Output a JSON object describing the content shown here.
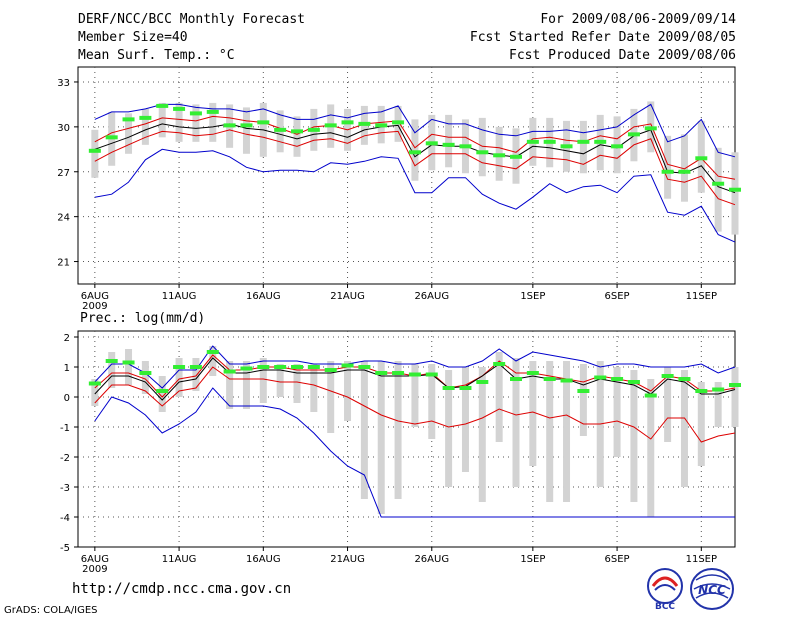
{
  "header": {
    "title": "DERF/NCC/BCC Monthly Forecast",
    "member_size": "Member Size=40",
    "forecast_period": "For 2009/08/06-2009/09/14",
    "start_date": "Fcst Started Refer Date 2009/08/05",
    "produced_date": "Fcst Produced Date 2009/08/06"
  },
  "footer": {
    "url": "http://cmdp.ncc.cma.gov.cn",
    "credit": "GrADS: COLA/IGES",
    "logo_left": "BCC",
    "logo_right": "NCC"
  },
  "colors": {
    "envelope": "#0000cc",
    "quartile": "#dd0000",
    "median": "#000000",
    "mean": "#33ee33",
    "box": "#d3d3d3",
    "grid": "#555555"
  },
  "chart_data": [
    {
      "type": "line",
      "title": "Mean Surf. Temp.: °C",
      "xlabel": "",
      "ylabel": "",
      "ylim": [
        19.5,
        34
      ],
      "yticks": [
        21,
        24,
        27,
        30,
        33
      ],
      "x_day_range": [
        5,
        44
      ],
      "x_ticks": [
        {
          "day": 6,
          "label": "6AUG"
        },
        {
          "day": 11,
          "label": "11AUG"
        },
        {
          "day": 16,
          "label": "16AUG"
        },
        {
          "day": 21,
          "label": "21AUG"
        },
        {
          "day": 26,
          "label": "26AUG"
        },
        {
          "day": 32,
          "label": "1SEP"
        },
        {
          "day": 37,
          "label": "6SEP"
        },
        {
          "day": 42,
          "label": "11SEP"
        }
      ],
      "year_label": "2009",
      "x": [
        6,
        7,
        8,
        9,
        10,
        11,
        12,
        13,
        14,
        15,
        16,
        17,
        18,
        19,
        20,
        21,
        22,
        23,
        24,
        25,
        26,
        27,
        28,
        29,
        30,
        31,
        32,
        33,
        34,
        35,
        36,
        37,
        38,
        39,
        40,
        41,
        42,
        43,
        44
      ],
      "series": [
        {
          "name": "max",
          "values": [
            30.5,
            31.0,
            31.0,
            31.2,
            31.5,
            31.5,
            31.3,
            31.2,
            31.2,
            31.0,
            31.2,
            30.8,
            30.5,
            30.5,
            30.8,
            30.6,
            30.9,
            31.0,
            31.4,
            29.6,
            30.5,
            30.2,
            30.2,
            29.8,
            29.5,
            29.4,
            29.7,
            29.7,
            29.8,
            29.6,
            29.8,
            30.0,
            30.8,
            31.5,
            29.0,
            29.4,
            30.5,
            28.3,
            28.0
          ]
        },
        {
          "name": "upper_quartile",
          "values": [
            29.0,
            29.6,
            29.9,
            30.2,
            30.6,
            30.5,
            30.4,
            30.7,
            30.6,
            30.4,
            30.3,
            29.9,
            29.5,
            30.0,
            30.1,
            29.8,
            30.2,
            30.3,
            30.4,
            28.6,
            29.5,
            29.3,
            29.3,
            28.7,
            28.6,
            28.3,
            29.2,
            29.3,
            29.1,
            29.0,
            29.4,
            29.2,
            30.0,
            30.2,
            27.5,
            27.2,
            27.9,
            26.7,
            26.5
          ]
        },
        {
          "name": "median",
          "values": [
            28.5,
            28.9,
            29.3,
            29.8,
            30.2,
            30.0,
            29.9,
            30.0,
            30.2,
            29.9,
            29.8,
            29.5,
            29.2,
            29.5,
            29.6,
            29.3,
            29.8,
            30.0,
            30.1,
            28.0,
            28.8,
            28.7,
            28.7,
            28.3,
            28.1,
            28.0,
            28.7,
            28.6,
            28.4,
            28.2,
            28.8,
            28.6,
            29.4,
            29.8,
            27.0,
            26.9,
            27.4,
            26.0,
            25.6
          ]
        },
        {
          "name": "lower_quartile",
          "values": [
            27.7,
            28.3,
            28.8,
            29.3,
            29.7,
            29.6,
            29.4,
            29.5,
            29.8,
            29.5,
            29.3,
            29.0,
            28.7,
            29.1,
            29.2,
            28.9,
            29.4,
            29.6,
            29.7,
            27.4,
            28.2,
            28.2,
            28.2,
            27.6,
            27.4,
            27.2,
            28.0,
            27.9,
            27.8,
            27.5,
            28.1,
            27.9,
            28.8,
            29.2,
            26.5,
            26.3,
            26.7,
            25.2,
            24.8
          ]
        },
        {
          "name": "min",
          "values": [
            25.3,
            25.5,
            26.3,
            27.8,
            28.5,
            28.3,
            28.3,
            28.4,
            28.0,
            27.3,
            27.0,
            27.1,
            27.1,
            27.0,
            27.6,
            27.5,
            27.7,
            28.0,
            27.9,
            25.6,
            25.6,
            26.6,
            26.6,
            25.5,
            24.9,
            24.5,
            25.3,
            26.2,
            25.6,
            26.0,
            26.1,
            25.6,
            26.7,
            26.8,
            24.3,
            24.1,
            24.7,
            22.8,
            22.3
          ]
        },
        {
          "name": "ensemble_mean",
          "values": [
            28.4,
            29.3,
            30.5,
            30.6,
            31.4,
            31.2,
            30.9,
            31.0,
            30.1,
            30.1,
            30.3,
            29.8,
            29.7,
            29.8,
            30.1,
            30.3,
            30.2,
            30.1,
            30.3,
            28.3,
            28.9,
            28.8,
            28.7,
            28.3,
            28.1,
            28.0,
            29.0,
            29.0,
            28.7,
            29.0,
            29.0,
            28.7,
            29.5,
            29.9,
            27.0,
            27.0,
            27.9,
            26.2,
            25.8
          ]
        },
        {
          "name": "box_top",
          "values": [
            29.8,
            31.0,
            30.9,
            31.2,
            31.6,
            31.6,
            31.5,
            31.6,
            31.5,
            31.3,
            31.6,
            31.1,
            30.7,
            31.2,
            31.5,
            31.2,
            31.4,
            31.4,
            31.4,
            30.5,
            30.8,
            30.8,
            30.5,
            30.6,
            30.0,
            29.9,
            30.6,
            30.6,
            30.4,
            30.4,
            30.8,
            30.7,
            31.2,
            31.7,
            29.4,
            29.5,
            30.4,
            28.6,
            28.3
          ]
        },
        {
          "name": "box_bottom",
          "values": [
            26.6,
            27.4,
            28.2,
            28.8,
            29.3,
            29.0,
            29.0,
            29.0,
            28.6,
            28.2,
            28.0,
            28.3,
            28.0,
            28.4,
            28.6,
            28.4,
            28.8,
            28.9,
            29.0,
            26.4,
            27.1,
            27.3,
            26.9,
            26.7,
            26.4,
            26.2,
            27.4,
            27.3,
            27.0,
            26.9,
            27.1,
            26.9,
            27.7,
            28.3,
            25.2,
            25.0,
            25.6,
            23.0,
            22.8
          ]
        }
      ]
    },
    {
      "type": "line",
      "title": "Prec.: log(mm/d)",
      "xlabel": "",
      "ylabel": "",
      "ylim": [
        -5,
        2.2
      ],
      "yticks": [
        2,
        1,
        0,
        -1,
        -2,
        -3,
        -4,
        -5
      ],
      "x_day_range": [
        5,
        44
      ],
      "x_ticks": [
        {
          "day": 6,
          "label": "6AUG"
        },
        {
          "day": 11,
          "label": "11AUG"
        },
        {
          "day": 16,
          "label": "16AUG"
        },
        {
          "day": 21,
          "label": "21AUG"
        },
        {
          "day": 26,
          "label": "26AUG"
        },
        {
          "day": 32,
          "label": "1SEP"
        },
        {
          "day": 37,
          "label": "6SEP"
        },
        {
          "day": 42,
          "label": "11SEP"
        }
      ],
      "year_label": "2009",
      "x": [
        6,
        7,
        8,
        9,
        10,
        11,
        12,
        13,
        14,
        15,
        16,
        17,
        18,
        19,
        20,
        21,
        22,
        23,
        24,
        25,
        26,
        27,
        28,
        29,
        30,
        31,
        32,
        33,
        34,
        35,
        36,
        37,
        38,
        39,
        40,
        41,
        42,
        43,
        44
      ],
      "series": [
        {
          "name": "max",
          "values": [
            0.5,
            1.1,
            1.1,
            0.8,
            0.3,
            0.9,
            0.9,
            1.7,
            1.1,
            1.1,
            1.2,
            1.2,
            1.2,
            1.1,
            1.1,
            1.1,
            1.2,
            1.2,
            1.1,
            1.1,
            1.2,
            1.0,
            1.0,
            1.2,
            1.6,
            1.2,
            1.5,
            1.4,
            1.3,
            1.2,
            1.0,
            1.1,
            1.1,
            1.0,
            1.0,
            1.0,
            1.1,
            0.8,
            1.0
          ]
        },
        {
          "name": "upper_quartile",
          "values": [
            0.3,
            0.8,
            0.8,
            0.6,
            0.0,
            0.6,
            0.7,
            1.4,
            0.9,
            0.9,
            1.0,
            1.0,
            0.9,
            0.9,
            0.9,
            1.0,
            1.0,
            0.8,
            0.8,
            0.7,
            0.8,
            0.3,
            0.4,
            0.7,
            1.2,
            0.8,
            0.8,
            0.7,
            0.6,
            0.5,
            0.7,
            0.6,
            0.5,
            0.2,
            0.7,
            0.6,
            0.2,
            0.2,
            0.3
          ]
        },
        {
          "name": "median",
          "values": [
            0.1,
            0.7,
            0.7,
            0.5,
            -0.1,
            0.5,
            0.6,
            1.3,
            0.8,
            0.8,
            0.9,
            0.9,
            0.8,
            0.8,
            0.8,
            0.9,
            0.9,
            0.7,
            0.7,
            0.7,
            0.75,
            0.3,
            0.35,
            0.7,
            1.1,
            0.6,
            0.7,
            0.6,
            0.6,
            0.4,
            0.6,
            0.5,
            0.4,
            0.1,
            0.6,
            0.5,
            0.1,
            0.1,
            0.25
          ]
        },
        {
          "name": "lower_quartile",
          "values": [
            -0.2,
            0.4,
            0.4,
            0.2,
            -0.3,
            0.2,
            0.3,
            1.0,
            0.6,
            0.6,
            0.6,
            0.5,
            0.5,
            0.4,
            0.2,
            0.0,
            -0.3,
            -0.6,
            -0.8,
            -0.9,
            -0.8,
            -1.0,
            -0.9,
            -0.7,
            -0.4,
            -0.6,
            -0.5,
            -0.7,
            -0.6,
            -0.9,
            -0.9,
            -0.8,
            -1.0,
            -1.4,
            -0.7,
            -0.7,
            -1.5,
            -1.3,
            -1.2
          ]
        },
        {
          "name": "min",
          "values": [
            -0.8,
            0.0,
            -0.2,
            -0.6,
            -1.2,
            -0.9,
            -0.5,
            0.3,
            -0.3,
            -0.3,
            -0.3,
            -0.4,
            -0.7,
            -1.2,
            -1.8,
            -2.3,
            -2.6,
            -4.0,
            -4.0,
            -4.0,
            -4.0,
            -4.0,
            -4.0,
            -4.0,
            -4.0,
            -4.0,
            -4.0,
            -4.0,
            -4.0,
            -4.0,
            -4.0,
            -4.0,
            -4.0,
            -4.0,
            -4.0,
            -4.0,
            -4.0,
            -4.0,
            -4.0
          ]
        },
        {
          "name": "ensemble_mean",
          "values": [
            0.45,
            1.2,
            1.15,
            0.8,
            0.2,
            1.0,
            1.0,
            1.5,
            0.85,
            0.95,
            1.0,
            1.0,
            1.0,
            1.0,
            0.9,
            1.05,
            1.0,
            0.8,
            0.8,
            0.75,
            0.75,
            0.3,
            0.3,
            0.5,
            1.1,
            0.6,
            0.8,
            0.6,
            0.55,
            0.2,
            0.65,
            0.6,
            0.5,
            0.05,
            0.7,
            0.6,
            0.2,
            0.25,
            0.4
          ]
        },
        {
          "name": "box_top",
          "values": [
            0.6,
            1.5,
            1.6,
            1.2,
            0.7,
            1.3,
            1.3,
            1.7,
            1.2,
            1.2,
            1.3,
            1.1,
            1.1,
            1.1,
            1.2,
            1.2,
            1.2,
            1.2,
            1.2,
            1.1,
            1.1,
            0.9,
            1.0,
            1.0,
            1.5,
            1.3,
            1.2,
            1.2,
            1.2,
            1.1,
            1.2,
            1.0,
            0.9,
            0.6,
            1.0,
            0.9,
            0.5,
            0.5,
            1.0
          ]
        },
        {
          "name": "box_bottom",
          "values": [
            -0.3,
            0.3,
            0.4,
            0.1,
            -0.5,
            0.0,
            0.2,
            0.7,
            -0.4,
            -0.4,
            -0.2,
            0.0,
            -0.2,
            -0.5,
            -1.2,
            -0.8,
            -3.4,
            -3.9,
            -3.4,
            -1.0,
            -1.4,
            -3.0,
            -2.5,
            -3.5,
            -1.5,
            -3.0,
            -2.3,
            -3.5,
            -3.5,
            -1.3,
            -3.0,
            -2.0,
            -3.5,
            -4.0,
            -1.5,
            -3.0,
            -2.3,
            -1.0,
            -1.0
          ]
        }
      ]
    }
  ]
}
